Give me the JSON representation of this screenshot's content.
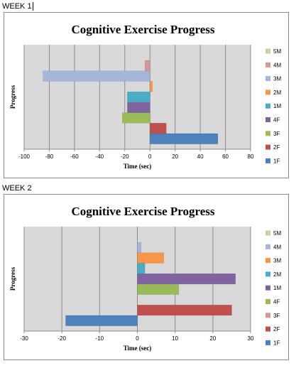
{
  "weeks": [
    {
      "label": "WEEK 1",
      "chart_data": {
        "type": "bar",
        "orientation": "horizontal",
        "title": "Cognitive Exercise Progress",
        "xlabel": "Time (sec)",
        "ylabel": "Progress",
        "xlim": [
          -100,
          80
        ],
        "xticks": [
          -100,
          -80,
          -60,
          -40,
          -20,
          0,
          20,
          40,
          60,
          80
        ],
        "grid": "vertical",
        "legend_position": "right",
        "series": [
          {
            "name": "1F",
            "value": 54,
            "color": "#4f81bd"
          },
          {
            "name": "2F",
            "value": 13,
            "color": "#c0504d"
          },
          {
            "name": "3F",
            "value": -22,
            "color": "#9bbb59"
          },
          {
            "name": "4F",
            "value": -18,
            "color": "#8064a2"
          },
          {
            "name": "1M",
            "value": -18,
            "color": "#4bacc6"
          },
          {
            "name": "2M",
            "value": 2,
            "color": "#f79646"
          },
          {
            "name": "3M",
            "value": -85,
            "color": "#a6b6d9"
          },
          {
            "name": "4M",
            "value": -4,
            "color": "#d99694"
          },
          {
            "name": "5M",
            "value": 0,
            "color": "#c3d69b"
          }
        ]
      }
    },
    {
      "label": "WEEK 2",
      "chart_data": {
        "type": "bar",
        "orientation": "horizontal",
        "title": "Cognitive Exercise Progress",
        "xlabel": "Time (sec)",
        "ylabel": "Progress",
        "xlim": [
          -30,
          30
        ],
        "xticks": [
          -30,
          -20,
          -10,
          0,
          10,
          20,
          30
        ],
        "grid": "vertical",
        "legend_position": "right",
        "series": [
          {
            "name": "1F",
            "value": -19,
            "color": "#4f81bd"
          },
          {
            "name": "2F",
            "value": 25,
            "color": "#c0504d"
          },
          {
            "name": "3F",
            "value": 0,
            "color": "#d99694"
          },
          {
            "name": "4F",
            "value": 11,
            "color": "#9bbb59"
          },
          {
            "name": "1M",
            "value": 26,
            "color": "#8064a2"
          },
          {
            "name": "2M",
            "value": 2,
            "color": "#4bacc6"
          },
          {
            "name": "3M",
            "value": 7,
            "color": "#f79646"
          },
          {
            "name": "4M",
            "value": 1,
            "color": "#a6b6d9"
          },
          {
            "name": "5M",
            "value": 0,
            "color": "#c3d69b"
          }
        ]
      }
    }
  ]
}
